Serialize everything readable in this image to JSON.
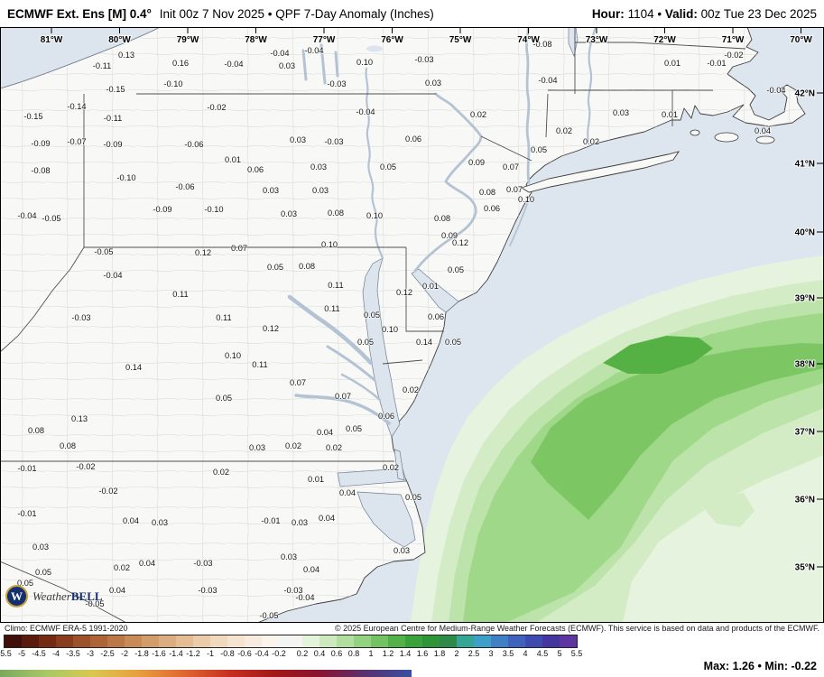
{
  "header": {
    "model": "ECMWF Ext. Ens [M] 0.4°",
    "subtitle": "Init 00z 7 Nov 2025 • QPF 7-Day Anomaly (Inches)",
    "hour_label": "Hour:",
    "hour_value": "1104",
    "separator": "•",
    "valid_label": "Valid:",
    "valid_value": "00z Tue 23 Dec 2025"
  },
  "map": {
    "lon_labels": [
      "81°W",
      "80°W",
      "79°W",
      "78°W",
      "77°W",
      "76°W",
      "75°W",
      "74°W",
      "73°W",
      "72°W",
      "71°W",
      "70°W"
    ],
    "lat_labels": [
      "42°N",
      "41°N",
      "40°N",
      "39°N",
      "38°N",
      "37°N",
      "36°N",
      "35°N"
    ],
    "logo": {
      "weather": "Weather",
      "bell": "BELL"
    },
    "values": [
      [
        113,
        76,
        "-0.11"
      ],
      [
        140,
        64,
        "0.13"
      ],
      [
        200,
        73,
        "0.16"
      ],
      [
        259,
        74,
        "-0.04"
      ],
      [
        310,
        62,
        "-0.04"
      ],
      [
        318,
        76,
        "0.03"
      ],
      [
        348,
        59,
        "-0.04"
      ],
      [
        404,
        72,
        "0.10"
      ],
      [
        470,
        69,
        "-0.03"
      ],
      [
        601,
        52,
        "-0.08"
      ],
      [
        745,
        73,
        "0.01"
      ],
      [
        794,
        73,
        "-0.01"
      ],
      [
        813,
        64,
        "-0.02"
      ],
      [
        128,
        102,
        "-0.15"
      ],
      [
        192,
        96,
        "-0.10"
      ],
      [
        373,
        96,
        "-0.03"
      ],
      [
        480,
        95,
        "0.03"
      ],
      [
        607,
        92,
        "-0.04"
      ],
      [
        860,
        103,
        "-0.04"
      ],
      [
        37,
        132,
        "-0.15"
      ],
      [
        85,
        121,
        "-0.14"
      ],
      [
        125,
        134,
        "-0.11"
      ],
      [
        240,
        122,
        "-0.02"
      ],
      [
        405,
        127,
        "-0.04"
      ],
      [
        530,
        130,
        "0.02"
      ],
      [
        688,
        128,
        "0.03"
      ],
      [
        742,
        130,
        "0.01"
      ],
      [
        45,
        162,
        "-0.09"
      ],
      [
        85,
        160,
        "-0.07"
      ],
      [
        125,
        163,
        "-0.09"
      ],
      [
        215,
        163,
        "-0.06"
      ],
      [
        330,
        158,
        "0.03"
      ],
      [
        370,
        160,
        "-0.03"
      ],
      [
        458,
        157,
        "0.06"
      ],
      [
        625,
        148,
        "0.02"
      ],
      [
        655,
        160,
        "0.02"
      ],
      [
        845,
        148,
        "0.04"
      ],
      [
        45,
        192,
        "-0.08"
      ],
      [
        140,
        200,
        "-0.10"
      ],
      [
        258,
        180,
        "0.01"
      ],
      [
        283,
        191,
        "0.06"
      ],
      [
        353,
        188,
        "0.03"
      ],
      [
        430,
        188,
        "0.05"
      ],
      [
        528,
        183,
        "0.09"
      ],
      [
        566,
        188,
        "0.07"
      ],
      [
        597,
        169,
        "0.05"
      ],
      [
        205,
        210,
        "-0.06"
      ],
      [
        300,
        214,
        "0.03"
      ],
      [
        355,
        214,
        "0.03"
      ],
      [
        540,
        216,
        "0.08"
      ],
      [
        570,
        213,
        "0.07"
      ],
      [
        30,
        242,
        "-0.04"
      ],
      [
        57,
        245,
        "-0.05"
      ],
      [
        180,
        235,
        "-0.09"
      ],
      [
        237,
        235,
        "-0.10"
      ],
      [
        320,
        240,
        "0.03"
      ],
      [
        372,
        239,
        "0.08"
      ],
      [
        415,
        242,
        "0.10"
      ],
      [
        490,
        245,
        "0.08"
      ],
      [
        545,
        234,
        "0.06"
      ],
      [
        583,
        224,
        "0.10"
      ],
      [
        498,
        264,
        "0.09"
      ],
      [
        115,
        282,
        "-0.05"
      ],
      [
        225,
        283,
        "0.12"
      ],
      [
        265,
        278,
        "0.07"
      ],
      [
        365,
        274,
        "0.10"
      ],
      [
        510,
        272,
        "0.12"
      ],
      [
        125,
        308,
        "-0.04"
      ],
      [
        305,
        299,
        "0.05"
      ],
      [
        340,
        298,
        "0.08"
      ],
      [
        505,
        302,
        "0.05"
      ],
      [
        200,
        329,
        "0.11"
      ],
      [
        372,
        319,
        "0.11"
      ],
      [
        448,
        327,
        "0.12"
      ],
      [
        477,
        320,
        "0.01"
      ],
      [
        483,
        354,
        "0.06"
      ],
      [
        90,
        355,
        "-0.03"
      ],
      [
        248,
        355,
        "0.11"
      ],
      [
        368,
        345,
        "0.11"
      ],
      [
        412,
        352,
        "0.05"
      ],
      [
        300,
        367,
        "0.12"
      ],
      [
        432,
        368,
        "0.10"
      ],
      [
        470,
        382,
        "0.14"
      ],
      [
        502,
        382,
        "0.05"
      ],
      [
        405,
        382,
        "0.05"
      ],
      [
        148,
        410,
        "0.14"
      ],
      [
        258,
        397,
        "0.10"
      ],
      [
        288,
        407,
        "0.11"
      ],
      [
        330,
        427,
        "0.07"
      ],
      [
        248,
        444,
        "0.05"
      ],
      [
        380,
        442,
        "0.07"
      ],
      [
        455,
        435,
        "0.02"
      ],
      [
        428,
        464,
        "0.06"
      ],
      [
        88,
        467,
        "0.13"
      ],
      [
        40,
        480,
        "0.08"
      ],
      [
        360,
        482,
        "0.04"
      ],
      [
        392,
        478,
        "0.05"
      ],
      [
        75,
        497,
        "0.08"
      ],
      [
        285,
        499,
        "0.03"
      ],
      [
        325,
        497,
        "0.02"
      ],
      [
        370,
        499,
        "0.02"
      ],
      [
        433,
        521,
        "0.02"
      ],
      [
        30,
        522,
        "-0.01"
      ],
      [
        95,
        520,
        "-0.02"
      ],
      [
        245,
        526,
        "0.02"
      ],
      [
        350,
        534,
        "0.01"
      ],
      [
        120,
        547,
        "-0.02"
      ],
      [
        385,
        549,
        "0.04"
      ],
      [
        458,
        554,
        "0.05"
      ],
      [
        30,
        572,
        "-0.01"
      ],
      [
        145,
        580,
        "0.04"
      ],
      [
        177,
        582,
        "0.03"
      ],
      [
        300,
        580,
        "-0.01"
      ],
      [
        332,
        582,
        "0.03"
      ],
      [
        362,
        577,
        "0.04"
      ],
      [
        45,
        609,
        "0.03"
      ],
      [
        320,
        620,
        "0.03"
      ],
      [
        445,
        613,
        "0.03"
      ],
      [
        48,
        637,
        "0.05"
      ],
      [
        135,
        632,
        "0.02"
      ],
      [
        163,
        627,
        "0.04"
      ],
      [
        225,
        627,
        "-0.03"
      ],
      [
        345,
        634,
        "0.04"
      ],
      [
        28,
        649,
        "0.05"
      ],
      [
        130,
        657,
        "0.04"
      ],
      [
        230,
        657,
        "-0.03"
      ],
      [
        325,
        657,
        "-0.03"
      ],
      [
        338,
        665,
        "-0.04"
      ],
      [
        105,
        672,
        "-0.05"
      ],
      [
        298,
        685,
        "-0.05"
      ]
    ]
  },
  "footer": {
    "climo": "Climo: ECMWF ERA-5 1991-2020",
    "copyright": "© 2025 European Centre for Medium-Range Weather Forecasts (ECMWF). This service is based on data and products of the ECMWF."
  },
  "colorbar": {
    "ticks": [
      "-5.5",
      "-5",
      "-4.5",
      "-4",
      "-3.5",
      "-3",
      "-2.5",
      "-2",
      "-1.8",
      "-1.6",
      "-1.4",
      "-1.2",
      "-1",
      "-0.8",
      "-0.6",
      "-0.4",
      "-0.2",
      "0.2",
      "0.4",
      "0.6",
      "0.8",
      "1",
      "1.2",
      "1.4",
      "1.6",
      "1.8",
      "2",
      "2.5",
      "3",
      "3.5",
      "4",
      "4.5",
      "5",
      "5.5"
    ],
    "segment_colors": [
      "#400f0a",
      "#5a1b0e",
      "#742b13",
      "#8a3d1c",
      "#9c5128",
      "#ad6436",
      "#bb7846",
      "#c88b58",
      "#d39c6b",
      "#dcad80",
      "#e4bd95",
      "#ebccaa",
      "#f1d9be",
      "#f5e4cf",
      "#f8ece0",
      "#fbf4ec",
      "#f4f4f2",
      "#e4f3dc",
      "#cdeabf",
      "#b1dfa0",
      "#93d281",
      "#73c363",
      "#53b247",
      "#3aa23a",
      "#2f9338",
      "#2e8a48",
      "#35a596",
      "#3e9fc8",
      "#3f7fc4",
      "#3f63bc",
      "#3f4ab0",
      "#45359f",
      "#5e35a1"
    ],
    "max_label": "Max:",
    "max_value": "1.26",
    "sep": "•",
    "min_label": "Min:",
    "min_value": "-0.22",
    "strip_colors": [
      "#7aa85c",
      "#a8c866",
      "#d8c850",
      "#e8a040",
      "#e06830",
      "#c83020",
      "#a01818",
      "#881430",
      "#583070",
      "#3850a0"
    ]
  }
}
